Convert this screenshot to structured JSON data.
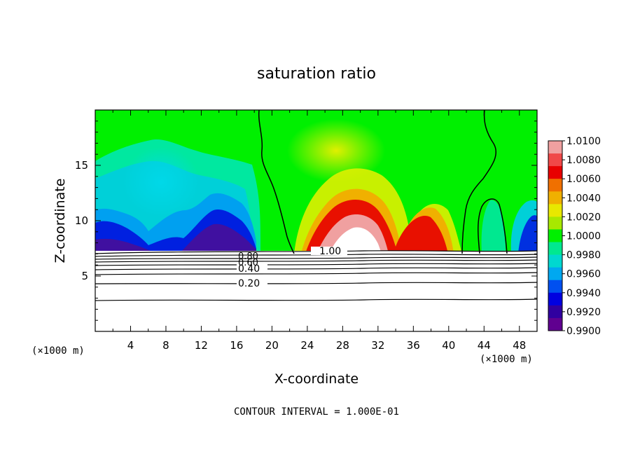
{
  "chart_data": {
    "type": "heatmap",
    "title": "saturation ratio",
    "xlabel": "X-coordinate",
    "ylabel": "Z-coordinate",
    "x_unit": "(×1000 m)",
    "z_unit": "(×1000 m)",
    "xlim": [
      0,
      50
    ],
    "ylim": [
      0,
      20
    ],
    "x_ticks": [
      "4",
      "8",
      "12",
      "16",
      "20",
      "24",
      "28",
      "32",
      "36",
      "40",
      "44",
      "48"
    ],
    "y_ticks": [
      "5",
      "10",
      "15"
    ],
    "footer": "CONTOUR INTERVAL = 1.000E-01",
    "colorbar": {
      "labels": [
        "1.0100",
        "1.0080",
        "1.0060",
        "1.0040",
        "1.0020",
        "1.0000",
        "0.9980",
        "0.9960",
        "0.9940",
        "0.9920",
        "0.9900"
      ],
      "colors": [
        "#f0a0a0",
        "#f04848",
        "#e80000",
        "#f07000",
        "#f0b000",
        "#e8e800",
        "#a8e800",
        "#00f000",
        "#00e890",
        "#00d8d0",
        "#00a8f0",
        "#0050f0",
        "#0000e0",
        "#3000a0",
        "#600090"
      ]
    },
    "contours": [
      {
        "label": "0.20",
        "z": 4.5,
        "labeled": true
      },
      {
        "label": "0.40",
        "z": 5.6,
        "labeled": true
      },
      {
        "label": "0.60",
        "z": 6.2,
        "labeled": true
      },
      {
        "label": "0.80",
        "z": 6.7,
        "labeled": true
      },
      {
        "label": "1.00",
        "z": 7.2,
        "labeled": true
      }
    ]
  }
}
